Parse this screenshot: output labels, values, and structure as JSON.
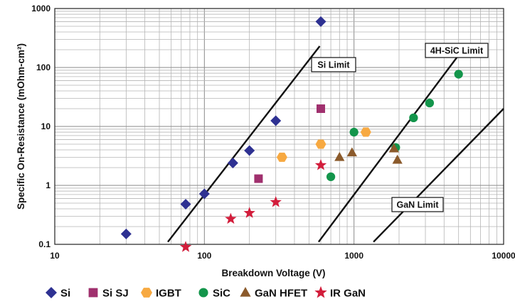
{
  "chart_data": {
    "type": "scatter",
    "xlabel": "Breakdown Voltage (V)",
    "ylabel": "Specific On-Resistance (mOhm-cm²)",
    "x_scale": "log",
    "y_scale": "log",
    "xlim": [
      10,
      10000
    ],
    "ylim": [
      0.1,
      1000
    ],
    "x_ticks": [
      "10",
      "100",
      "1000",
      "10000"
    ],
    "y_ticks": [
      "0.1",
      "1",
      "10",
      "100",
      "1000"
    ],
    "grid": true,
    "legend_position": "bottom",
    "series": [
      {
        "name": "Si",
        "marker": "diamond",
        "color": "#2e3192",
        "points": [
          [
            30,
            0.15
          ],
          [
            75,
            0.48
          ],
          [
            100,
            0.72
          ],
          [
            155,
            2.4
          ],
          [
            200,
            3.9
          ],
          [
            300,
            12.5
          ],
          [
            600,
            600
          ]
        ]
      },
      {
        "name": "Si SJ",
        "marker": "square",
        "color": "#a0306e",
        "points": [
          [
            230,
            1.3
          ],
          [
            600,
            20
          ]
        ]
      },
      {
        "name": "IGBT",
        "marker": "hexagon",
        "color": "#f7a941",
        "points": [
          [
            330,
            3
          ],
          [
            600,
            5
          ],
          [
            1200,
            8
          ]
        ]
      },
      {
        "name": "SiC",
        "marker": "circle",
        "color": "#13954b",
        "points": [
          [
            700,
            1.4
          ],
          [
            1000,
            8
          ],
          [
            1900,
            4.4
          ],
          [
            2500,
            14
          ],
          [
            3200,
            25
          ],
          [
            5000,
            77
          ]
        ]
      },
      {
        "name": "GaN HFET",
        "marker": "triangle",
        "color": "#8b5a2b",
        "points": [
          [
            800,
            3
          ],
          [
            970,
            3.6
          ],
          [
            1850,
            4.2
          ],
          [
            1950,
            2.7
          ]
        ]
      },
      {
        "name": "IR GaN",
        "marker": "star",
        "color": "#d21d3b",
        "points": [
          [
            75,
            0.09
          ],
          [
            150,
            0.27
          ],
          [
            200,
            0.34
          ],
          [
            300,
            0.52
          ],
          [
            600,
            2.2
          ]
        ]
      }
    ],
    "limit_lines": [
      {
        "name": "Si Limit",
        "from": [
          57,
          0.11
        ],
        "to": [
          590,
          230
        ]
      },
      {
        "name": "4H-SiC Limit",
        "from": [
          580,
          0.11
        ],
        "to": [
          5400,
          210
        ]
      },
      {
        "name": "GaN Limit",
        "from": [
          1350,
          0.11
        ],
        "to": [
          10000,
          20
        ]
      }
    ]
  }
}
